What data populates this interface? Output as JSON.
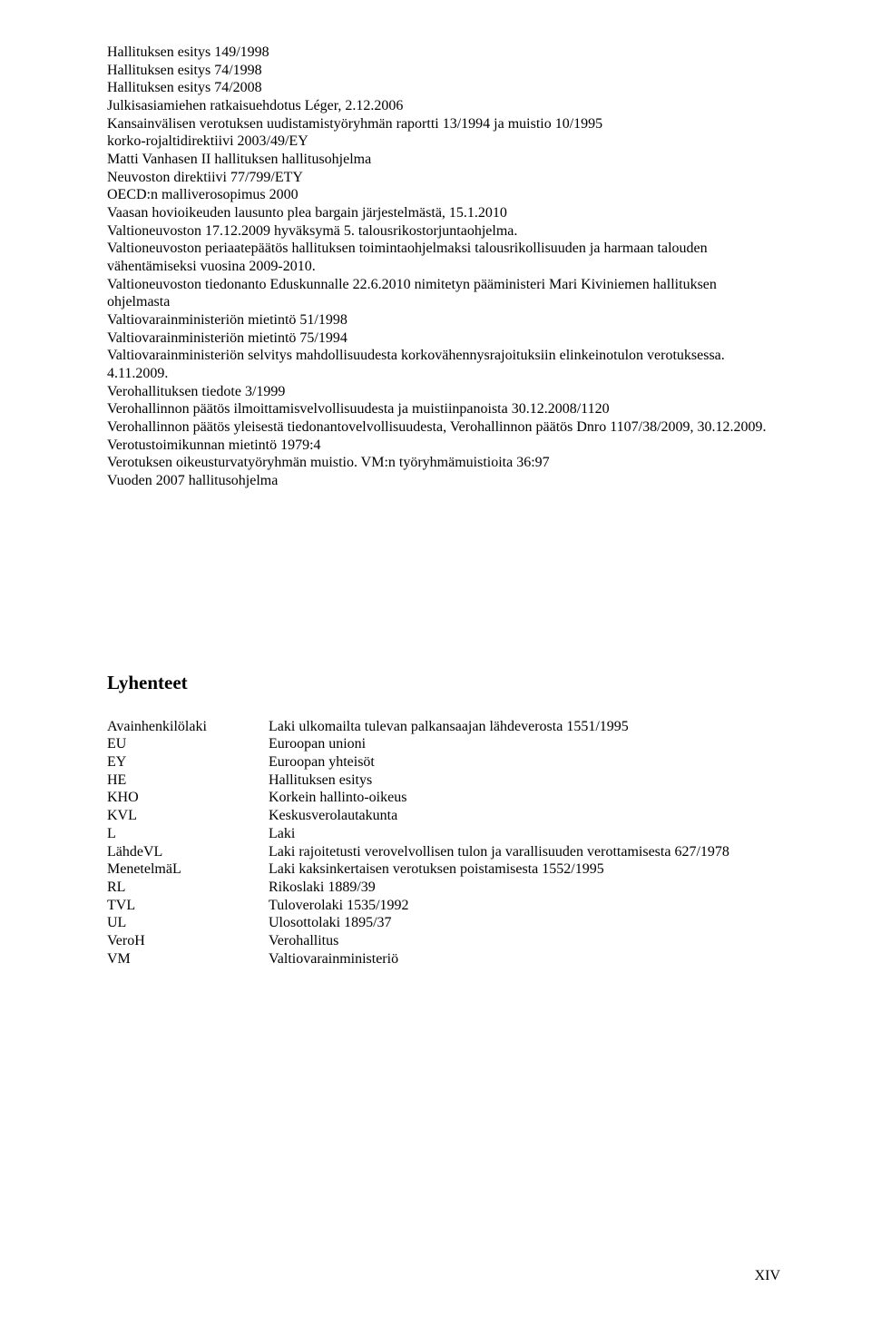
{
  "body": {
    "lines": [
      "Hallituksen esitys 149/1998",
      "Hallituksen esitys 74/1998",
      "Hallituksen esitys 74/2008",
      "Julkisasiamiehen ratkaisuehdotus Léger, 2.12.2006",
      "Kansainvälisen verotuksen uudistamistyöryhmän raportti 13/1994 ja muistio 10/1995",
      "korko-rojaltidirektiivi 2003/49/EY",
      "Matti Vanhasen II hallituksen hallitusohjelma",
      "Neuvoston direktiivi 77/799/ETY",
      "OECD:n malliverosopimus 2000",
      "Vaasan hovioikeuden lausunto plea bargain järjestelmästä, 15.1.2010",
      "Valtioneuvoston 17.12.2009 hyväksymä 5. talousrikostorjuntaohjelma.",
      "Valtioneuvoston periaatepäätös hallituksen toimintaohjelmaksi talousrikollisuuden ja harmaan talouden vähentämiseksi vuosina 2009-2010.",
      "Valtioneuvoston tiedonanto Eduskunnalle 22.6.2010 nimitetyn pääministeri Mari Kiviniemen hallituksen ohjelmasta",
      "Valtiovarainministeriön mietintö 51/1998",
      "Valtiovarainministeriön mietintö 75/1994",
      "Valtiovarainministeriön selvitys mahdollisuudesta korkovähennysrajoituksiin elinkeinotulon verotuksessa. 4.11.2009.",
      "Verohallituksen tiedote 3/1999",
      "Verohallinnon päätös ilmoittamisvelvollisuudesta ja muistiinpanoista 30.12.2008/1120",
      "Verohallinnon päätös yleisestä tiedonantovelvollisuudesta, Verohallinnon päätös Dnro 1107/38/2009, 30.12.2009.",
      "Verotustoimikunnan mietintö 1979:4",
      "Verotuksen oikeusturvatyöryhmän muistio. VM:n työryhmämuistioita 36:97",
      "Vuoden 2007 hallitusohjelma"
    ]
  },
  "abbr": {
    "heading": "Lyhenteet",
    "rows": [
      {
        "key": "Avainhenkilölaki",
        "val": "Laki ulkomailta tulevan palkansaajan lähdeverosta 1551/1995"
      },
      {
        "key": "EU",
        "val": "Euroopan unioni"
      },
      {
        "key": "EY",
        "val": "Euroopan yhteisöt"
      },
      {
        "key": "HE",
        "val": "Hallituksen esitys"
      },
      {
        "key": "KHO",
        "val": "Korkein hallinto-oikeus"
      },
      {
        "key": "KVL",
        "val": "Keskusverolautakunta"
      },
      {
        "key": "L",
        "val": "Laki"
      },
      {
        "key": "LähdeVL",
        "val": "Laki rajoitetusti verovelvollisen tulon ja varallisuuden verottamisesta 627/1978"
      },
      {
        "key": "MenetelmäL",
        "val": "Laki kaksinkertaisen verotuksen poistamisesta 1552/1995"
      },
      {
        "key": "RL",
        "val": "Rikoslaki 1889/39"
      },
      {
        "key": "TVL",
        "val": "Tuloverolaki 1535/1992"
      },
      {
        "key": "UL",
        "val": "Ulosottolaki 1895/37"
      },
      {
        "key": "VeroH",
        "val": "Verohallitus"
      },
      {
        "key": "VM",
        "val": "Valtiovarainministeriö"
      }
    ]
  },
  "pageNumber": "XIV"
}
